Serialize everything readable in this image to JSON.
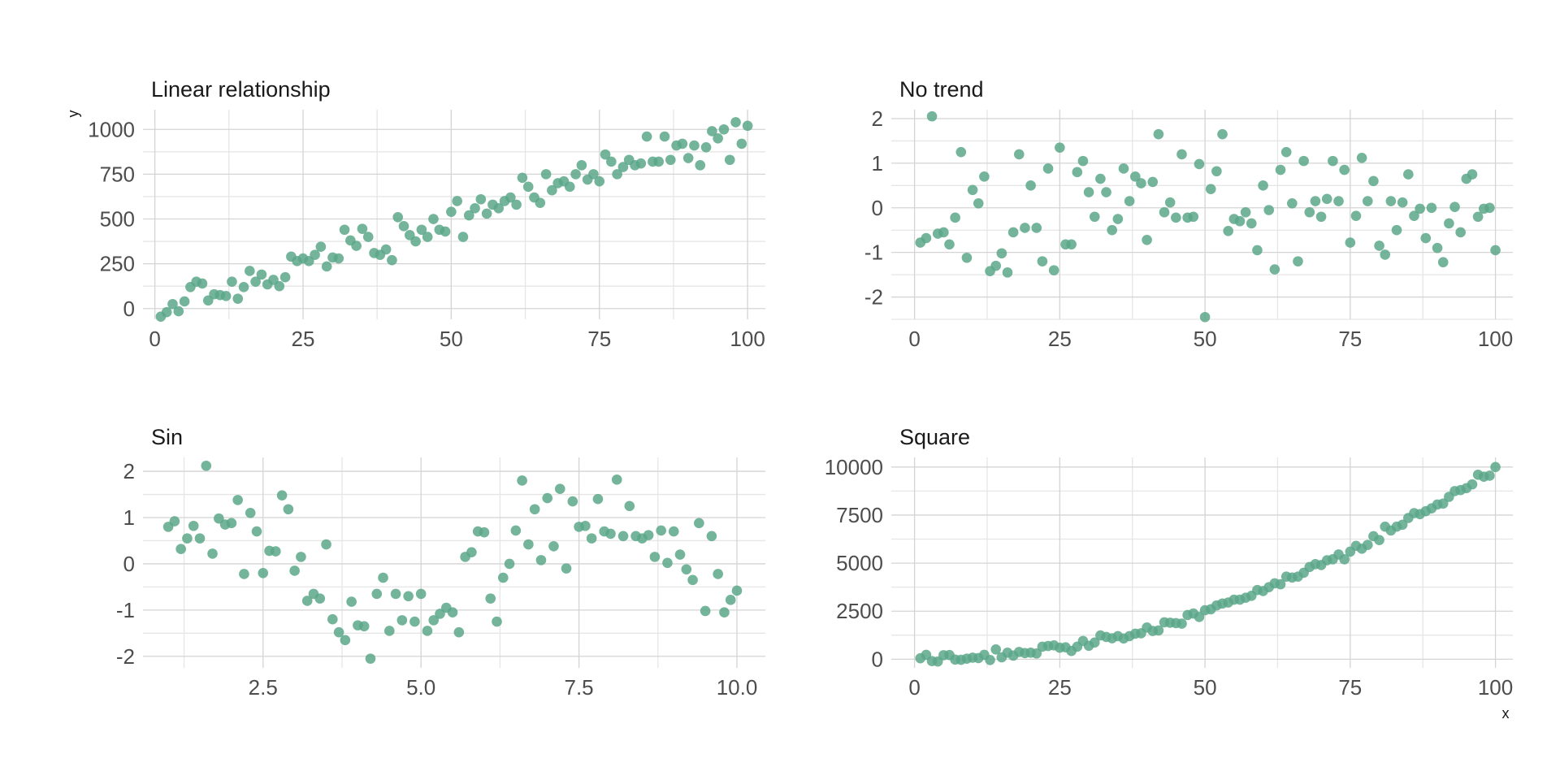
{
  "figure": {
    "ylabel": "y",
    "xlabel": "x",
    "point_color": "#5aa78a",
    "grid_color": "#d4d4d4"
  },
  "chart_data": [
    {
      "type": "scatter",
      "title": "Linear relationship",
      "xlim": [
        -2,
        103
      ],
      "ylim": [
        -60,
        1110
      ],
      "xticks": [
        0,
        25,
        50,
        75,
        100
      ],
      "xticklabels": [
        "0",
        "25",
        "50",
        "75",
        "100"
      ],
      "yticks": [
        0,
        250,
        500,
        750,
        1000
      ],
      "yticklabels": [
        "0",
        "250",
        "500",
        "750",
        "1000"
      ],
      "x": [
        1,
        2,
        3,
        4,
        5,
        6,
        7,
        8,
        9,
        10,
        11,
        12,
        13,
        14,
        15,
        16,
        17,
        18,
        19,
        20,
        21,
        22,
        23,
        24,
        25,
        26,
        27,
        28,
        29,
        30,
        31,
        32,
        33,
        34,
        35,
        36,
        37,
        38,
        39,
        40,
        41,
        42,
        43,
        44,
        45,
        46,
        47,
        48,
        49,
        50,
        51,
        52,
        53,
        54,
        55,
        56,
        57,
        58,
        59,
        60,
        61,
        62,
        63,
        64,
        65,
        66,
        67,
        68,
        69,
        70,
        71,
        72,
        73,
        74,
        75,
        76,
        77,
        78,
        79,
        80,
        81,
        82,
        83,
        84,
        85,
        86,
        87,
        88,
        89,
        90,
        91,
        92,
        93,
        94,
        95,
        96,
        97,
        98,
        99,
        100
      ],
      "y": [
        -45,
        -20,
        25,
        -15,
        40,
        120,
        150,
        140,
        45,
        80,
        75,
        70,
        150,
        55,
        120,
        210,
        150,
        190,
        135,
        160,
        125,
        175,
        290,
        265,
        280,
        265,
        300,
        345,
        235,
        285,
        280,
        440,
        380,
        350,
        445,
        400,
        310,
        300,
        330,
        270,
        510,
        460,
        410,
        375,
        440,
        400,
        500,
        440,
        430,
        540,
        600,
        400,
        520,
        560,
        610,
        530,
        580,
        560,
        600,
        620,
        580,
        730,
        680,
        620,
        590,
        750,
        660,
        700,
        710,
        680,
        750,
        800,
        720,
        750,
        710,
        860,
        820,
        750,
        790,
        830,
        800,
        810,
        960,
        820,
        820,
        960,
        830,
        910,
        920,
        840,
        910,
        800,
        900,
        990,
        950,
        1000,
        830,
        1040,
        920,
        1020
      ]
    },
    {
      "type": "scatter",
      "title": "No trend",
      "xlim": [
        -4,
        103
      ],
      "ylim": [
        -2.5,
        2.2
      ],
      "xticks": [
        0,
        25,
        50,
        75,
        100
      ],
      "xticklabels": [
        "0",
        "25",
        "50",
        "75",
        "100"
      ],
      "yticks": [
        -2,
        -1,
        0,
        1,
        2
      ],
      "yticklabels": [
        "-2",
        "-1",
        "0",
        "1",
        "2"
      ],
      "x": [
        1,
        2,
        3,
        4,
        5,
        6,
        7,
        8,
        9,
        10,
        11,
        12,
        13,
        14,
        15,
        16,
        17,
        18,
        19,
        20,
        21,
        22,
        23,
        24,
        25,
        26,
        27,
        28,
        29,
        30,
        31,
        32,
        33,
        34,
        35,
        36,
        37,
        38,
        39,
        40,
        41,
        42,
        43,
        44,
        45,
        46,
        47,
        48,
        49,
        50,
        51,
        52,
        53,
        54,
        55,
        56,
        57,
        58,
        59,
        60,
        61,
        62,
        63,
        64,
        65,
        66,
        67,
        68,
        69,
        70,
        71,
        72,
        73,
        74,
        75,
        76,
        77,
        78,
        79,
        80,
        81,
        82,
        83,
        84,
        85,
        86,
        87,
        88,
        89,
        90,
        91,
        92,
        93,
        94,
        95,
        96,
        97,
        98,
        99,
        100
      ],
      "y": [
        -0.78,
        -0.68,
        2.05,
        -0.58,
        -0.55,
        -0.82,
        -0.22,
        1.25,
        -1.12,
        0.4,
        0.1,
        0.7,
        -1.42,
        -1.3,
        -1.02,
        -1.45,
        -0.55,
        1.2,
        -0.45,
        0.5,
        -0.45,
        -1.2,
        0.88,
        -1.4,
        1.35,
        -0.82,
        -0.82,
        0.8,
        1.05,
        0.35,
        -0.2,
        0.65,
        0.35,
        -0.5,
        -0.25,
        0.88,
        0.15,
        0.7,
        0.55,
        -0.72,
        0.58,
        1.65,
        -0.1,
        0.12,
        -0.22,
        1.2,
        -0.22,
        -0.2,
        0.98,
        -2.45,
        0.42,
        0.82,
        1.65,
        -0.52,
        -0.25,
        -0.3,
        -0.1,
        -0.35,
        -0.95,
        0.5,
        -0.05,
        -1.38,
        0.85,
        1.25,
        0.1,
        -1.2,
        1.05,
        -0.1,
        0.15,
        -0.2,
        0.2,
        1.05,
        0.15,
        0.85,
        -0.78,
        -0.18,
        1.12,
        0.15,
        0.6,
        -0.85,
        -1.05,
        0.15,
        -0.5,
        0.12,
        0.75,
        -0.18,
        -0.02,
        -0.68,
        0.0,
        -0.9,
        -1.22,
        -0.35,
        0.02,
        -0.55,
        0.65,
        0.75,
        -0.2,
        -0.02,
        0.0,
        -0.95
      ]
    },
    {
      "type": "scatter",
      "title": "Sin",
      "xlim": [
        0.6,
        10.45
      ],
      "ylim": [
        -2.25,
        2.3
      ],
      "xticks": [
        2.5,
        5.0,
        7.5,
        10.0
      ],
      "xticklabels": [
        "2.5",
        "5.0",
        "7.5",
        "10.0"
      ],
      "yticks": [
        -2,
        -1,
        0,
        1,
        2
      ],
      "yticklabels": [
        "-2",
        "-1",
        "0",
        "1",
        "2"
      ],
      "x": [
        1.0,
        1.1,
        1.2,
        1.3,
        1.4,
        1.5,
        1.6,
        1.7,
        1.8,
        1.9,
        2.0,
        2.1,
        2.2,
        2.3,
        2.4,
        2.5,
        2.6,
        2.7,
        2.8,
        2.9,
        3.0,
        3.1,
        3.2,
        3.3,
        3.4,
        3.5,
        3.6,
        3.7,
        3.8,
        3.9,
        4.0,
        4.1,
        4.2,
        4.3,
        4.4,
        4.5,
        4.6,
        4.7,
        4.8,
        4.9,
        5.0,
        5.1,
        5.2,
        5.3,
        5.4,
        5.5,
        5.6,
        5.7,
        5.8,
        5.9,
        6.0,
        6.1,
        6.2,
        6.3,
        6.4,
        6.5,
        6.6,
        6.7,
        6.8,
        6.9,
        7.0,
        7.1,
        7.2,
        7.3,
        7.4,
        7.5,
        7.6,
        7.7,
        7.8,
        7.9,
        8.0,
        8.1,
        8.2,
        8.3,
        8.4,
        8.5,
        8.6,
        8.7,
        8.8,
        8.9,
        9.0,
        9.1,
        9.2,
        9.3,
        9.4,
        9.5,
        9.6,
        9.7,
        9.8,
        9.9,
        10.0
      ],
      "y": [
        0.8,
        0.92,
        0.32,
        0.55,
        0.82,
        0.55,
        2.12,
        0.22,
        0.98,
        0.85,
        0.88,
        1.38,
        -0.22,
        1.1,
        0.7,
        -0.2,
        0.28,
        0.27,
        1.48,
        1.18,
        -0.15,
        0.15,
        -0.8,
        -0.65,
        -0.75,
        0.42,
        -1.2,
        -1.48,
        -1.65,
        -0.82,
        -1.33,
        -1.35,
        -2.05,
        -0.65,
        -0.3,
        -1.45,
        -0.65,
        -1.22,
        -0.7,
        -1.25,
        -0.65,
        -1.45,
        -1.22,
        -1.08,
        -0.95,
        -1.05,
        -1.48,
        0.15,
        0.25,
        0.7,
        0.68,
        -0.75,
        -1.25,
        -0.3,
        0.0,
        0.72,
        1.8,
        0.42,
        1.18,
        0.08,
        1.42,
        0.38,
        1.62,
        -0.1,
        1.35,
        0.8,
        0.82,
        0.55,
        1.4,
        0.7,
        0.65,
        1.82,
        0.6,
        1.25,
        0.6,
        0.55,
        0.62,
        0.15,
        0.72,
        0.02,
        0.7,
        0.2,
        -0.12,
        -0.35,
        0.88,
        -1.02,
        0.6,
        -0.22,
        -1.05,
        -0.78,
        -0.58
      ]
    },
    {
      "type": "scatter",
      "title": "Square",
      "xlim": [
        -4,
        103
      ],
      "ylim": [
        -450,
        10500
      ],
      "xticks": [
        0,
        25,
        50,
        75,
        100
      ],
      "xticklabels": [
        "0",
        "25",
        "50",
        "75",
        "100"
      ],
      "yticks": [
        0,
        2500,
        5000,
        7500,
        10000
      ],
      "yticklabels": [
        "0",
        "2500",
        "5000",
        "7500",
        "10000"
      ],
      "x": [
        1,
        2,
        3,
        4,
        5,
        6,
        7,
        8,
        9,
        10,
        11,
        12,
        13,
        14,
        15,
        16,
        17,
        18,
        19,
        20,
        21,
        22,
        23,
        24,
        25,
        26,
        27,
        28,
        29,
        30,
        31,
        32,
        33,
        34,
        35,
        36,
        37,
        38,
        39,
        40,
        41,
        42,
        43,
        44,
        45,
        46,
        47,
        48,
        49,
        50,
        51,
        52,
        53,
        54,
        55,
        56,
        57,
        58,
        59,
        60,
        61,
        62,
        63,
        64,
        65,
        66,
        67,
        68,
        69,
        70,
        71,
        72,
        73,
        74,
        75,
        76,
        77,
        78,
        79,
        80,
        81,
        82,
        83,
        84,
        85,
        86,
        87,
        88,
        89,
        90,
        91,
        92,
        93,
        94,
        95,
        96,
        97,
        98,
        99,
        100
      ],
      "y": [
        50,
        230,
        -100,
        -120,
        210,
        220,
        -20,
        -30,
        30,
        80,
        60,
        230,
        -40,
        510,
        100,
        340,
        190,
        380,
        320,
        340,
        300,
        650,
        690,
        720,
        600,
        620,
        430,
        650,
        950,
        700,
        870,
        1240,
        1160,
        1090,
        1200,
        1080,
        1200,
        1330,
        1350,
        1650,
        1470,
        1500,
        1920,
        1900,
        1880,
        1850,
        2300,
        2380,
        2200,
        2550,
        2600,
        2800,
        2900,
        2950,
        3100,
        3100,
        3200,
        3300,
        3600,
        3550,
        3750,
        3950,
        3900,
        4300,
        4250,
        4300,
        4500,
        4800,
        4950,
        4900,
        5150,
        5200,
        5450,
        5200,
        5600,
        5900,
        5750,
        5950,
        6400,
        6200,
        6900,
        6700,
        6900,
        7000,
        7350,
        7600,
        7550,
        7700,
        7850,
        8050,
        8100,
        8450,
        8750,
        8800,
        8900,
        9100,
        9600,
        9500,
        9550,
        10000
      ]
    }
  ]
}
